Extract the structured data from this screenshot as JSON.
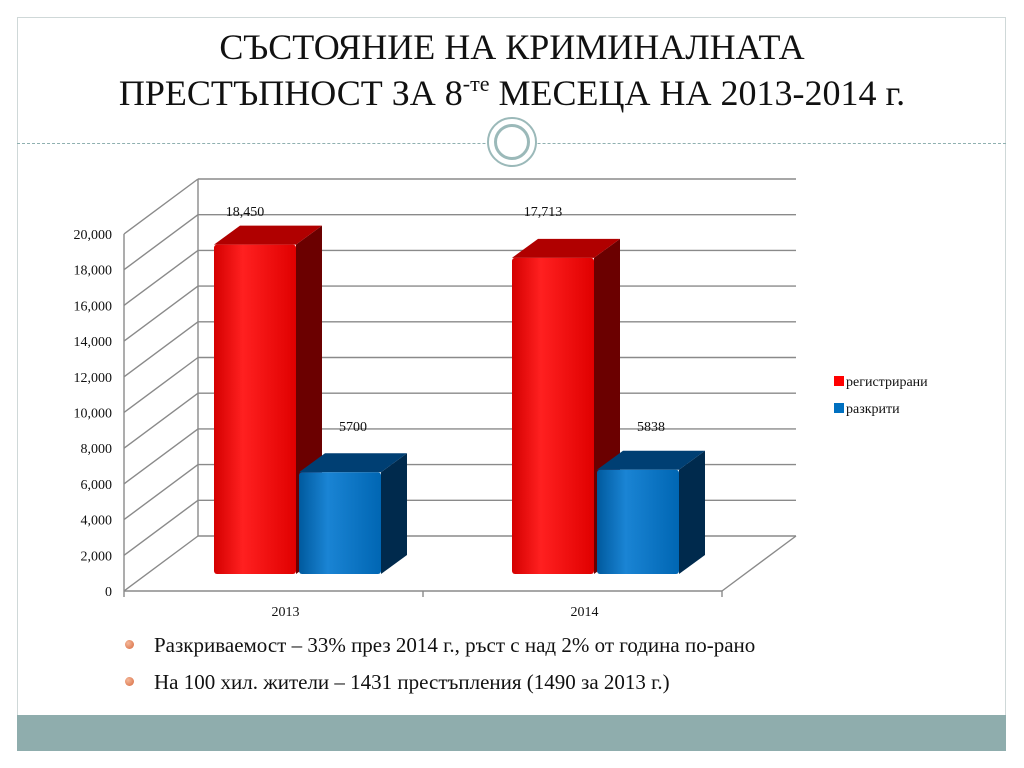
{
  "slide": {
    "title_line1": "СЪСТОЯНИЕ НА КРИМИНАЛНАТА",
    "title_line2_a": "ПРЕСТЪПНОСТ  ЗА 8",
    "title_sup": "-те",
    "title_line2_b": " МЕСЕЦА НА 2013-2014 г."
  },
  "bullets": [
    "Разкриваемост – 33% през 2014 г., ръст с над 2% от година по-рано",
    "На 100 хил. жители – 1431 престъпления (1490 за 2013 г.)"
  ],
  "colors": {
    "registered": "#ff0000",
    "registered_dark": "#6b0000",
    "solved": "#0070c0",
    "solved_dark": "#002a4d",
    "accent": "#8fadad"
  },
  "chart_data": {
    "type": "bar",
    "style": "3d-clustered",
    "categories": [
      "2013",
      "2014"
    ],
    "series": [
      {
        "name": "регистрирани",
        "values": [
          18450,
          17713
        ],
        "labels": [
          "18,450",
          "17,713"
        ]
      },
      {
        "name": "разкрити",
        "values": [
          5700,
          5838
        ],
        "labels": [
          "5700",
          "5838"
        ]
      }
    ],
    "y_ticks": [
      "0",
      "2,000",
      "4,000",
      "6,000",
      "8,000",
      "10,000",
      "12,000",
      "14,000",
      "16,000",
      "18,000",
      "20,000"
    ],
    "ylim": [
      0,
      20000
    ],
    "grid": true,
    "legend": "right"
  }
}
